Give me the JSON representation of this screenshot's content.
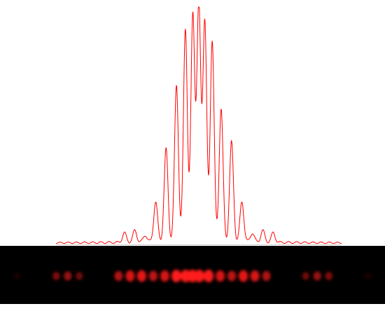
{
  "chart_data": {
    "type": "line",
    "title": "",
    "xlabel": "",
    "ylabel": "",
    "grid": false,
    "legend": "none",
    "xlim": [
      -1,
      1
    ],
    "ylim": [
      0,
      1
    ],
    "peak_x": [
      -0.5208,
      -0.4479,
      -0.375,
      -0.3021,
      -0.2292,
      -0.1563,
      -0.0938,
      -0.0417,
      0.0,
      0.0417,
      0.0938,
      0.1563,
      0.2292,
      0.3021,
      0.375,
      0.4479,
      0.5208
    ],
    "peak_y": [
      0.04,
      0.05,
      0.03,
      0.17,
      0.39,
      0.66,
      0.9,
      0.96,
      1.0,
      0.93,
      0.85,
      0.56,
      0.42,
      0.17,
      0.04,
      0.05,
      0.04
    ],
    "trace_color": "#ff0000",
    "pattern": {
      "background": "#000000",
      "spot_color": "#ff1a1a",
      "spot_x": [
        -0.76,
        -0.59,
        -0.54,
        -0.49,
        -0.32,
        -0.27,
        -0.22,
        -0.17,
        -0.12,
        -0.07,
        -0.03,
        0.0,
        0.03,
        0.07,
        0.12,
        0.17,
        0.22,
        0.27,
        0.32,
        0.49,
        0.54,
        0.59,
        0.76
      ],
      "spot_intensity": [
        0.15,
        0.5,
        0.6,
        0.45,
        0.7,
        0.85,
        0.9,
        0.75,
        0.85,
        1.0,
        1.0,
        1.0,
        1.0,
        1.0,
        0.85,
        0.75,
        0.9,
        0.85,
        0.7,
        0.45,
        0.6,
        0.5,
        0.15
      ]
    }
  }
}
